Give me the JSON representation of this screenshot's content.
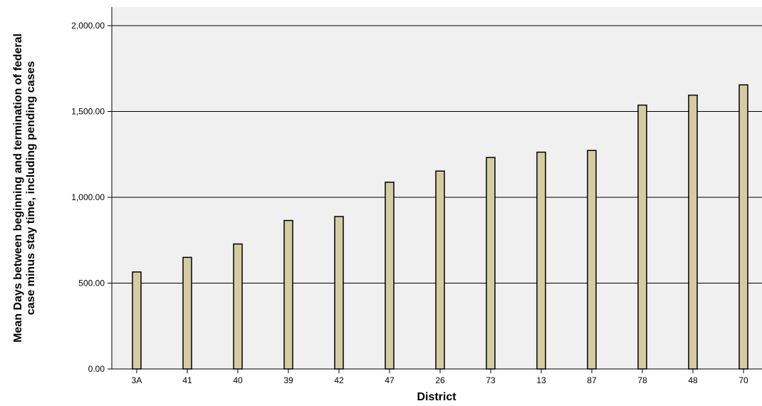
{
  "chart_data": {
    "type": "bar",
    "title": "",
    "xlabel": "District",
    "ylabel_lines": [
      "Mean Days between beginning and termination of federal",
      "case minus stay time, including pending cases"
    ],
    "categories": [
      "3A",
      "41",
      "40",
      "39",
      "42",
      "47",
      "26",
      "73",
      "13",
      "87",
      "78",
      "48",
      "70"
    ],
    "values": [
      565,
      650,
      728,
      865,
      888,
      1088,
      1153,
      1232,
      1263,
      1273,
      1537,
      1595,
      1655
    ],
    "ylim": [
      0,
      2000
    ],
    "yticks": [
      0,
      500,
      1000,
      1500,
      2000
    ],
    "ytick_labels": [
      "0.00",
      "500.00",
      "1,000.00",
      "1,500.00",
      "2,000.00"
    ],
    "grid": "horizontal",
    "legend": "none",
    "colors": {
      "bar_fill": "#d5cda2",
      "bar_stroke": "#000000",
      "plot_background": "#f0f0f0",
      "gridline": "#000000"
    }
  }
}
